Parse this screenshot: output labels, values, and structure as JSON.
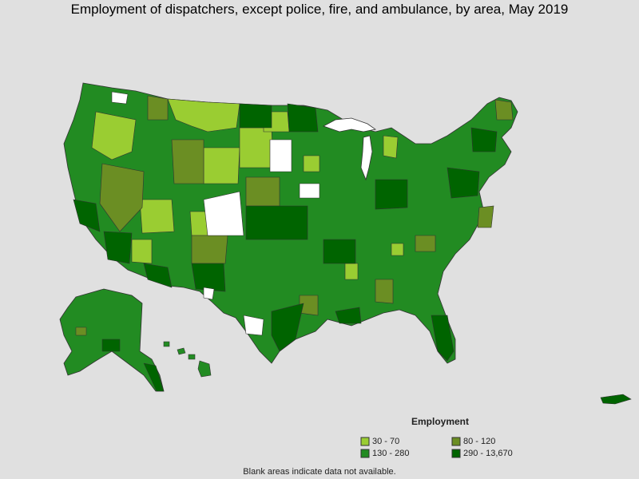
{
  "title": "Employment of dispatchers, except police, fire, and ambulance, by area, May 2019",
  "legend": {
    "title": "Employment",
    "items": [
      {
        "label": "30 - 70",
        "color": "#9acd32"
      },
      {
        "label": "80 - 120",
        "color": "#6b8e23"
      },
      {
        "label": "130 - 280",
        "color": "#228b22"
      },
      {
        "label": "290 - 13,670",
        "color": "#006400"
      }
    ]
  },
  "footnote": "Blank areas indicate data not available.",
  "colors": {
    "background": "#e0e0e0",
    "no_data": "#ffffff",
    "border": "#333333"
  }
}
